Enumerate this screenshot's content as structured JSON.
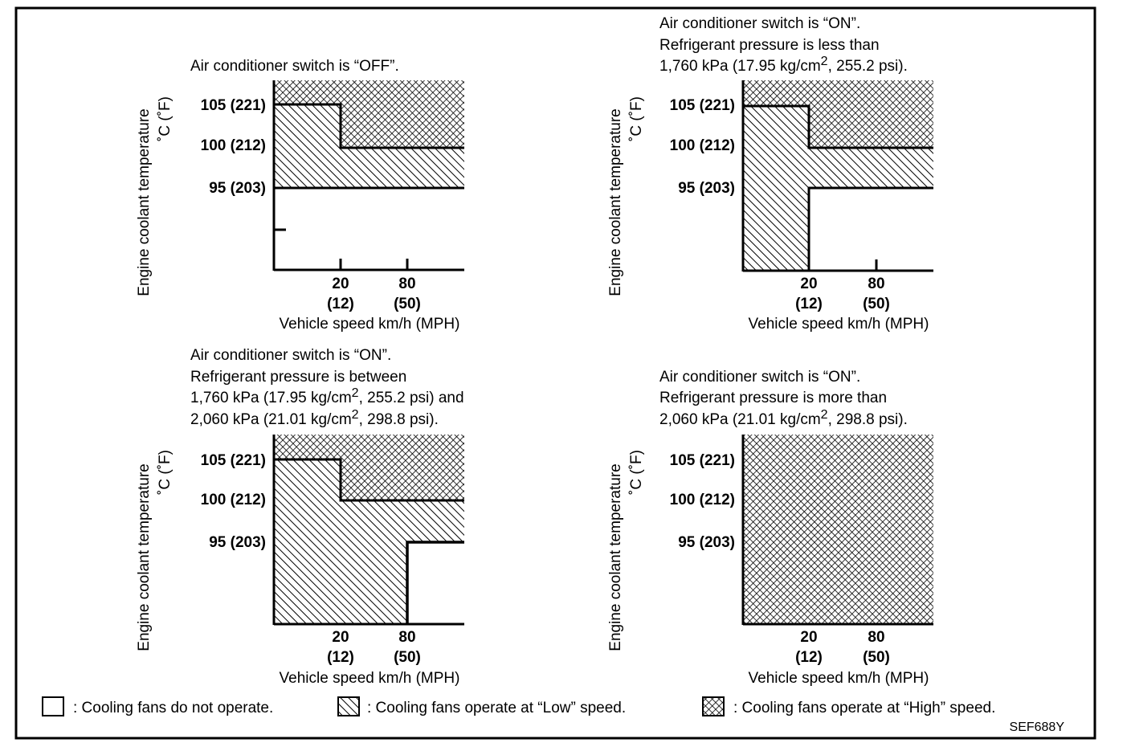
{
  "figure_id": "SEF688Y",
  "y_axis_label_1": "Engine coolant temperature",
  "y_axis_label_2": "˚C (˚F)",
  "x_axis_label": "Vehicle speed km/h (MPH)",
  "y_ticks": [
    "105 (221)",
    "100 (212)",
    "95 (203)"
  ],
  "x_ticks": [
    {
      "top": "20",
      "bottom": "(12)"
    },
    {
      "top": "80",
      "bottom": "(50)"
    }
  ],
  "panels": [
    {
      "id": "off",
      "caption": [
        "Air conditioner switch is “OFF”."
      ],
      "regions": {
        "high": "above 105 °C below 20 km/h, above 100 °C above 20 km/h",
        "low": "95 °C up to high boundary"
      }
    },
    {
      "id": "on-low-pressure",
      "caption": [
        "Air conditioner switch is “ON”.",
        "Refrigerant pressure is less than",
        "1,760 kPa (17.95 kg/cm², 255.2 psi)."
      ],
      "regions": {
        "high": "above 105 °C below 20 km/h, above 100 °C above 20 km/h",
        "low": "all temps below 20 km/h; 95 °C up to high boundary above 20 km/h"
      }
    },
    {
      "id": "on-mid-pressure",
      "caption": [
        "Air conditioner switch is “ON”.",
        "Refrigerant pressure is between",
        "1,760 kPa (17.95 kg/cm², 255.2 psi) and",
        "2,060 kPa (21.01 kg/cm², 298.8 psi)."
      ],
      "regions": {
        "high": "above 105 °C below 20 km/h, above 100 °C above 20 km/h",
        "low": "all temps below 80 km/h; 95 °C up to high boundary above 80 km/h"
      }
    },
    {
      "id": "on-high-pressure",
      "caption": [
        "Air conditioner switch is “ON”.",
        "Refrigerant pressure is more than",
        "2,060 kPa (21.01 kg/cm², 298.8 psi)."
      ],
      "regions": {
        "high": "entire area"
      }
    }
  ],
  "legend": [
    {
      "pattern": "none",
      "label": ": Cooling fans do not operate."
    },
    {
      "pattern": "hatch",
      "label": ": Cooling fans operate at “Low” speed."
    },
    {
      "pattern": "crosshatch",
      "label": ": Cooling fans operate at “High” speed."
    }
  ]
}
